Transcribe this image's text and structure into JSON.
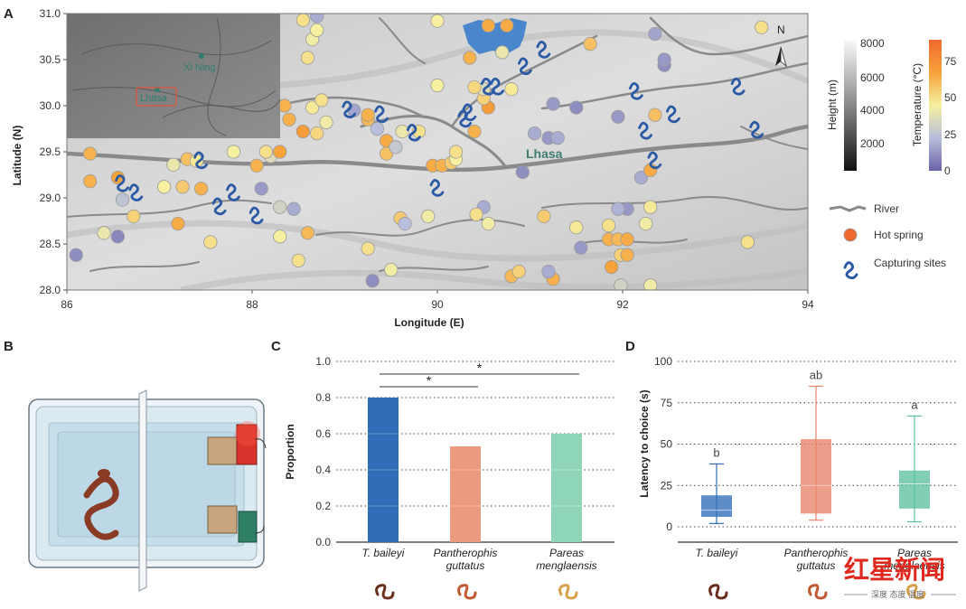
{
  "colors": {
    "hot_spring": "#ee6a2e",
    "river": "#8a8a8a",
    "capture": "#2a5aa6",
    "bar_baileyi": "#2f6db8",
    "bar_guttatus": "#ec9a7f",
    "bar_pareas": "#8fd6b8",
    "box_baileyi": "#2f6db8",
    "box_guttatus": "#e8836a",
    "box_pareas": "#5cc29e",
    "lake": "#4a86cc"
  },
  "panels": {
    "a": {
      "letter": "A"
    },
    "b": {
      "letter": "B"
    },
    "c": {
      "letter": "C"
    },
    "d": {
      "letter": "D"
    }
  },
  "map": {
    "xlabel": "Longitude (E)",
    "ylabel": "Latitude (N)",
    "x_ticks": [
      "86",
      "88",
      "90",
      "92",
      "94"
    ],
    "y_ticks": [
      "31.0",
      "30.5",
      "30.0",
      "29.5",
      "29.0",
      "28.5",
      "28.0"
    ],
    "lhasa_label": "Lhasa",
    "north_label": "N",
    "inset": {
      "xining": "Xi Ning",
      "lhasa": "Lhasa"
    },
    "height_bar": {
      "title": "Height (m)",
      "ticks": [
        "8000",
        "6000",
        "4000",
        "2000"
      ]
    },
    "temp_bar": {
      "title": "Temperature (°C)",
      "ticks": [
        "75",
        "50",
        "25",
        "0"
      ]
    },
    "legend": {
      "river": "River",
      "hot_spring": "Hot spring",
      "capture": "Capturing sites"
    }
  },
  "map_points": {
    "hot_springs": [
      [
        86.25,
        29.48,
        70
      ],
      [
        86.25,
        29.18,
        70
      ],
      [
        86.55,
        29.22,
        75
      ],
      [
        86.6,
        28.98,
        28
      ],
      [
        86.72,
        28.8,
        60
      ],
      [
        86.4,
        28.62,
        45
      ],
      [
        86.55,
        28.58,
        10
      ],
      [
        86.1,
        28.38,
        12
      ],
      [
        87.3,
        29.42,
        65
      ],
      [
        87.15,
        29.36,
        45
      ],
      [
        87.25,
        29.12,
        62
      ],
      [
        87.05,
        29.12,
        50
      ],
      [
        87.45,
        29.1,
        70
      ],
      [
        87.2,
        28.72,
        72
      ],
      [
        87.4,
        29.4,
        52
      ],
      [
        87.55,
        28.52,
        55
      ],
      [
        87.8,
        29.5,
        50
      ],
      [
        88.05,
        29.35,
        70
      ],
      [
        88.2,
        29.45,
        40
      ],
      [
        88.15,
        29.5,
        55
      ],
      [
        88.3,
        29.5,
        75
      ],
      [
        88.1,
        29.1,
        15
      ],
      [
        88.3,
        28.9,
        35
      ],
      [
        88.45,
        28.88,
        20
      ],
      [
        88.3,
        28.58,
        50
      ],
      [
        88.6,
        28.62,
        68
      ],
      [
        88.5,
        28.32,
        55
      ],
      [
        88.35,
        30.0,
        70
      ],
      [
        88.4,
        29.85,
        70
      ],
      [
        88.55,
        29.72,
        78
      ],
      [
        88.7,
        29.7,
        58
      ],
      [
        88.8,
        29.82,
        48
      ],
      [
        88.65,
        29.98,
        52
      ],
      [
        88.75,
        30.06,
        55
      ],
      [
        88.6,
        30.52,
        55
      ],
      [
        88.65,
        30.72,
        48
      ],
      [
        88.7,
        30.82,
        50
      ],
      [
        88.7,
        30.97,
        20
      ],
      [
        88.55,
        30.93,
        55
      ],
      [
        89.25,
        29.85,
        68
      ],
      [
        89.35,
        29.75,
        25
      ],
      [
        89.45,
        29.62,
        72
      ],
      [
        89.45,
        29.48,
        65
      ],
      [
        89.55,
        29.55,
        30
      ],
      [
        89.62,
        29.72,
        45
      ],
      [
        89.8,
        29.72,
        55
      ],
      [
        89.95,
        29.35,
        72
      ],
      [
        90.05,
        29.35,
        70
      ],
      [
        90.15,
        29.38,
        62
      ],
      [
        90.2,
        29.42,
        50
      ],
      [
        90.2,
        29.5,
        55
      ],
      [
        89.1,
        29.95,
        18
      ],
      [
        89.25,
        29.9,
        70
      ],
      [
        89.6,
        28.78,
        62
      ],
      [
        89.65,
        28.72,
        25
      ],
      [
        89.9,
        28.8,
        48
      ],
      [
        89.5,
        28.22,
        48
      ],
      [
        89.25,
        28.45,
        55
      ],
      [
        89.3,
        28.1,
        12
      ],
      [
        90.4,
        29.72,
        70
      ],
      [
        90.55,
        29.98,
        78
      ],
      [
        90.5,
        30.08,
        60
      ],
      [
        90.5,
        30.18,
        40
      ],
      [
        90.4,
        30.2,
        58
      ],
      [
        90.35,
        30.52,
        70
      ],
      [
        90.7,
        30.58,
        45
      ],
      [
        90.8,
        30.18,
        52
      ],
      [
        90.75,
        30.87,
        72
      ],
      [
        90.0,
        30.92,
        50
      ],
      [
        90.0,
        30.22,
        50
      ],
      [
        90.5,
        28.9,
        20
      ],
      [
        90.55,
        28.72,
        48
      ],
      [
        90.8,
        28.15,
        68
      ],
      [
        90.88,
        28.2,
        60
      ],
      [
        91.25,
        28.12,
        70
      ],
      [
        91.2,
        28.2,
        20
      ],
      [
        91.15,
        28.8,
        62
      ],
      [
        91.55,
        28.46,
        15
      ],
      [
        91.85,
        28.7,
        55
      ],
      [
        91.85,
        28.55,
        70
      ],
      [
        91.95,
        28.55,
        68
      ],
      [
        92.05,
        28.55,
        72
      ],
      [
        91.88,
        28.25,
        75
      ],
      [
        91.98,
        28.38,
        60
      ],
      [
        92.05,
        28.38,
        70
      ],
      [
        91.98,
        28.05,
        35
      ],
      [
        92.3,
        28.05,
        48
      ],
      [
        92.3,
        28.9,
        52
      ],
      [
        91.2,
        29.65,
        15
      ],
      [
        91.3,
        29.65,
        20
      ],
      [
        91.05,
        29.7,
        20
      ],
      [
        90.92,
        29.28,
        12
      ],
      [
        91.25,
        30.02,
        15
      ],
      [
        91.5,
        29.98,
        12
      ],
      [
        91.95,
        29.88,
        15
      ],
      [
        92.35,
        29.9,
        65
      ],
      [
        92.45,
        30.44,
        12
      ],
      [
        92.45,
        30.5,
        15
      ],
      [
        92.35,
        30.78,
        18
      ],
      [
        92.2,
        29.22,
        20
      ],
      [
        92.3,
        29.3,
        72
      ],
      [
        92.05,
        28.88,
        15
      ],
      [
        91.95,
        28.88,
        22
      ],
      [
        92.25,
        28.72,
        48
      ],
      [
        93.35,
        28.52,
        55
      ],
      [
        93.5,
        30.85,
        55
      ],
      [
        91.65,
        30.67,
        65
      ],
      [
        90.55,
        30.87,
        72
      ],
      [
        91.5,
        28.68,
        52
      ],
      [
        90.42,
        28.82,
        55
      ]
    ],
    "capture_sites": [
      [
        86.6,
        29.15
      ],
      [
        86.75,
        29.05
      ],
      [
        87.45,
        29.4
      ],
      [
        87.65,
        28.9
      ],
      [
        87.8,
        29.05
      ],
      [
        88.05,
        28.8
      ],
      [
        89.05,
        29.95
      ],
      [
        89.4,
        29.9
      ],
      [
        89.75,
        29.7
      ],
      [
        90.0,
        29.1
      ],
      [
        90.3,
        29.85
      ],
      [
        90.35,
        29.92
      ],
      [
        90.55,
        30.2
      ],
      [
        90.65,
        30.2
      ],
      [
        90.95,
        30.42
      ],
      [
        91.15,
        30.6
      ],
      [
        92.15,
        30.15
      ],
      [
        92.25,
        29.72
      ],
      [
        92.35,
        29.4
      ],
      [
        92.55,
        29.9
      ],
      [
        93.25,
        30.2
      ],
      [
        93.45,
        29.73
      ]
    ]
  },
  "chart_data": [
    {
      "type": "bar",
      "title": "",
      "xlabel": "",
      "ylabel": "Proportion",
      "ylim": [
        0.0,
        1.0
      ],
      "yticks": [
        "0.0",
        "0.2",
        "0.4",
        "0.6",
        "0.8",
        "1.0"
      ],
      "categories": [
        [
          "T. baileyi"
        ],
        [
          "Pantherophis",
          "guttatus"
        ],
        [
          "Pareas",
          "menglaensis"
        ]
      ],
      "values": [
        0.8,
        0.53,
        0.6
      ],
      "significance": [
        {
          "from": 0,
          "to": 1,
          "label": "*"
        },
        {
          "from": 0,
          "to": 2,
          "label": "*"
        }
      ],
      "grid": true
    },
    {
      "type": "box",
      "title": "",
      "xlabel": "",
      "ylabel": "Latency to choice (s)",
      "ylim": [
        0,
        100
      ],
      "yticks": [
        "0",
        "25",
        "50",
        "75",
        "100"
      ],
      "categories": [
        [
          "T. baileyi"
        ],
        [
          "Pantherophis",
          "guttatus"
        ],
        [
          "Pareas",
          "menglaensis"
        ]
      ],
      "boxes": [
        {
          "min": 2,
          "q1": 6,
          "median": 10,
          "q3": 19,
          "max": 38,
          "label": "b"
        },
        {
          "min": 4,
          "q1": 8,
          "median": 25,
          "q3": 53,
          "max": 85,
          "label": "ab"
        },
        {
          "min": 3,
          "q1": 11,
          "median": 26,
          "q3": 34,
          "max": 67,
          "label": "a"
        }
      ],
      "grid": true
    }
  ],
  "watermark": {
    "title": "红星新闻",
    "subtitle": "深度 态度 温度"
  }
}
